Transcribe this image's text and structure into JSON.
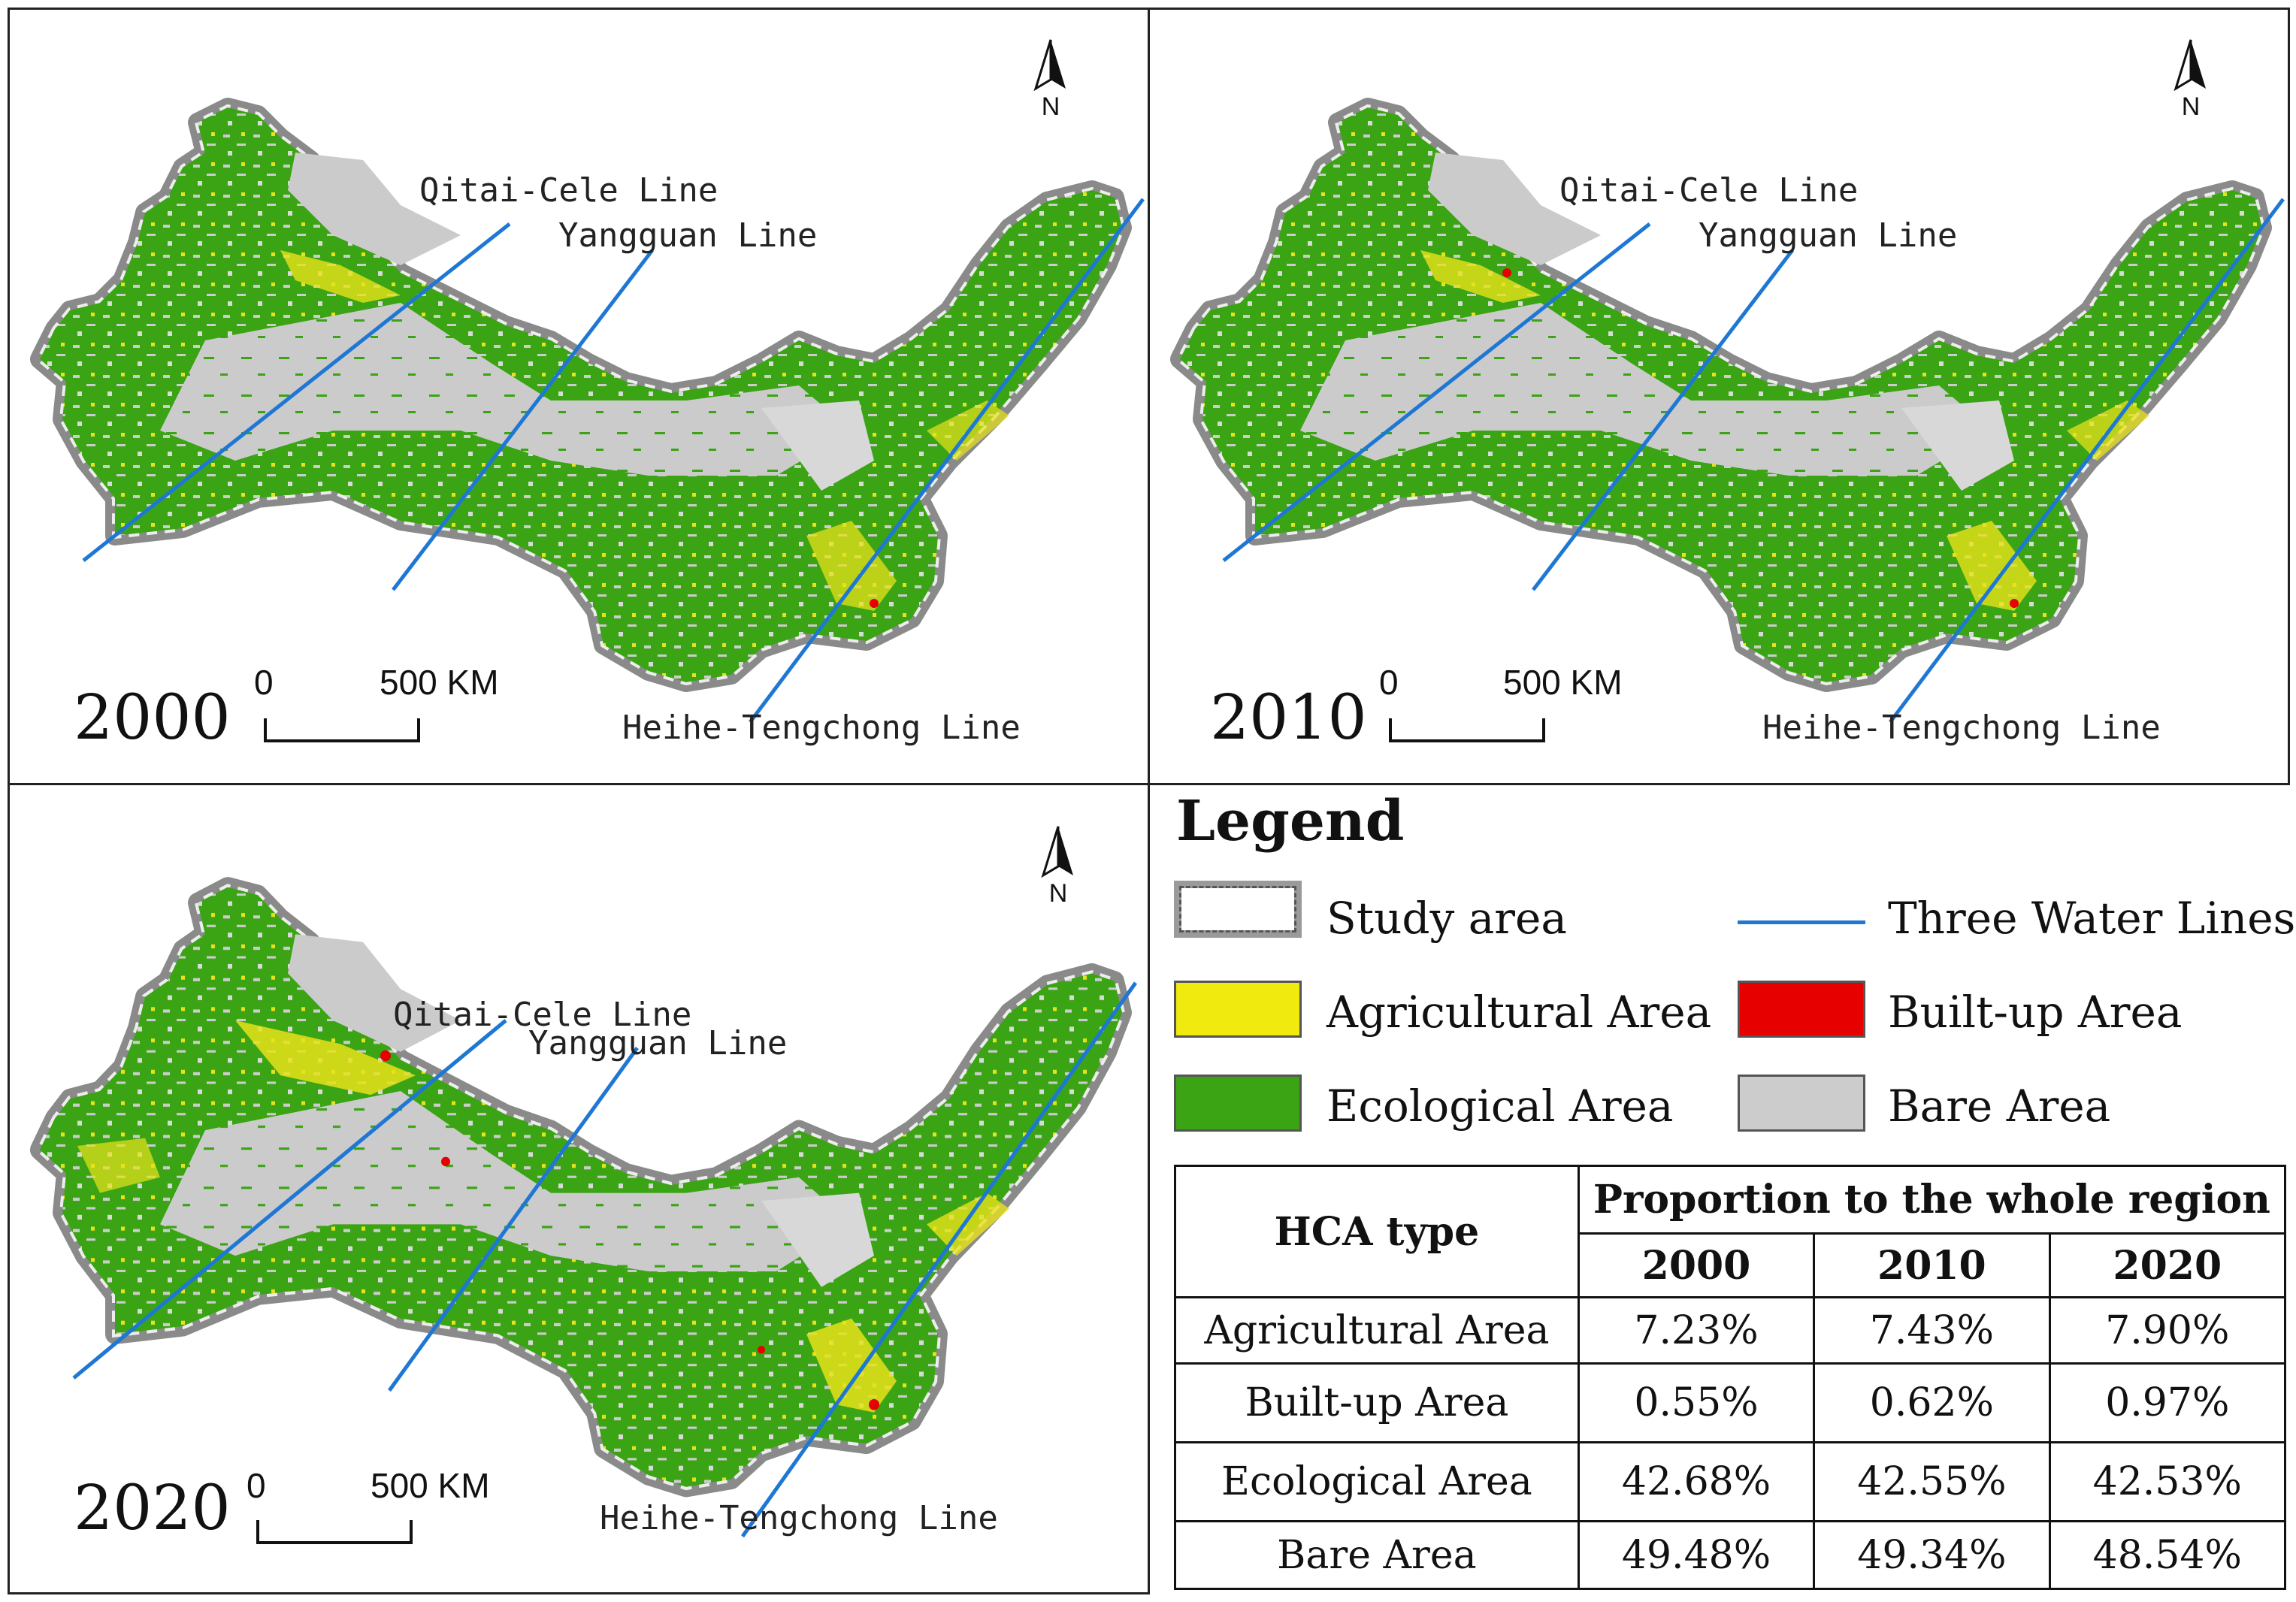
{
  "maps": [
    {
      "year": "2000",
      "scale_zero": "0",
      "scale_label": "500 KM",
      "north": "N",
      "line_labels": {
        "qitai": "Qitai-Cele Line",
        "yangguan": "Yangguan Line",
        "heihe": "Heihe-Tengchong Line"
      }
    },
    {
      "year": "2010",
      "scale_zero": "0",
      "scale_label": "500 KM",
      "north": "N",
      "line_labels": {
        "qitai": "Qitai-Cele Line",
        "yangguan": "Yangguan Line",
        "heihe": "Heihe-Tengchong Line"
      }
    },
    {
      "year": "2020",
      "scale_zero": "0",
      "scale_label": "500 KM",
      "north": "N",
      "line_labels": {
        "qitai": "Qitai-Cele Line",
        "yangguan": "Yangguan Line",
        "heihe": "Heihe-Tengchong Line"
      }
    }
  ],
  "legend": {
    "title": "Legend",
    "items": [
      {
        "label": "Study area",
        "color": "#ffffff"
      },
      {
        "label": "Three Water Lines",
        "color": "#1f77d4"
      },
      {
        "label": "Agricultural Area",
        "color": "#f0ea0e"
      },
      {
        "label": "Built-up Area",
        "color": "#e60000"
      },
      {
        "label": "Ecological Area",
        "color": "#3aa414"
      },
      {
        "label": "Bare Area",
        "color": "#cccccc"
      }
    ]
  },
  "table": {
    "type_header": "HCA type",
    "proportion_header": "Proportion to the whole region",
    "years": [
      "2000",
      "2010",
      "2020"
    ],
    "rows": [
      {
        "type": "Agricultural Area",
        "values": [
          "7.23%",
          "7.43%",
          "7.90%"
        ]
      },
      {
        "type": "Built-up Area",
        "values": [
          "0.55%",
          "0.62%",
          "0.97%"
        ]
      },
      {
        "type": "Ecological Area",
        "values": [
          "42.68%",
          "42.55%",
          "42.53%"
        ]
      },
      {
        "type": "Bare Area",
        "values": [
          "49.48%",
          "49.34%",
          "48.54%"
        ]
      }
    ]
  }
}
